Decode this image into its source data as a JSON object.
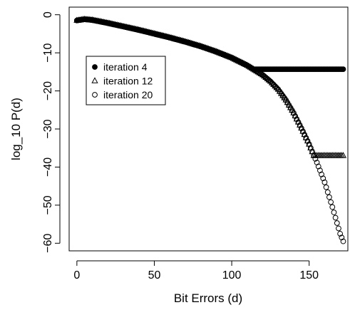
{
  "chart_data": {
    "type": "scatter",
    "title": "",
    "xlabel": "Bit Errors (d)",
    "ylabel": "log_10  P(d)",
    "xlim": [
      -5,
      175
    ],
    "ylim": [
      -62,
      2
    ],
    "x_ticks": [
      "0",
      "50",
      "100",
      "150"
    ],
    "y_ticks": [
      "0",
      "−10",
      "−20",
      "−30",
      "−40",
      "−50",
      "−60"
    ],
    "grid": false,
    "legend_position": "upper-left",
    "series": [
      {
        "name": "iteration 4",
        "marker": "filled-circle",
        "color": "#000000",
        "x_range": [
          0,
          172
        ],
        "points": [
          [
            0,
            -1.5
          ],
          [
            5,
            -1.2
          ],
          [
            10,
            -1.4
          ],
          [
            20,
            -2.2
          ],
          [
            30,
            -3.1
          ],
          [
            40,
            -4.0
          ],
          [
            50,
            -5.0
          ],
          [
            60,
            -6.0
          ],
          [
            70,
            -7.1
          ],
          [
            80,
            -8.3
          ],
          [
            90,
            -9.7
          ],
          [
            100,
            -11.3
          ],
          [
            110,
            -13.3
          ],
          [
            114,
            -14.3
          ],
          [
            120,
            -14.3
          ],
          [
            140,
            -14.3
          ],
          [
            160,
            -14.3
          ],
          [
            172,
            -14.3
          ]
        ]
      },
      {
        "name": "iteration 12",
        "marker": "open-triangle",
        "color": "#000000",
        "x_range": [
          0,
          172
        ],
        "points": [
          [
            0,
            -1.5
          ],
          [
            5,
            -1.2
          ],
          [
            10,
            -1.4
          ],
          [
            20,
            -2.2
          ],
          [
            30,
            -3.1
          ],
          [
            40,
            -4.0
          ],
          [
            50,
            -5.0
          ],
          [
            60,
            -6.0
          ],
          [
            70,
            -7.1
          ],
          [
            80,
            -8.3
          ],
          [
            90,
            -9.7
          ],
          [
            100,
            -11.3
          ],
          [
            110,
            -13.3
          ],
          [
            120,
            -15.8
          ],
          [
            125,
            -17.5
          ],
          [
            130,
            -19.6
          ],
          [
            135,
            -22.4
          ],
          [
            140,
            -25.8
          ],
          [
            145,
            -29.8
          ],
          [
            150,
            -34.0
          ],
          [
            153,
            -37.0
          ],
          [
            160,
            -37.0
          ],
          [
            172,
            -37.0
          ]
        ]
      },
      {
        "name": "iteration 20",
        "marker": "open-circle",
        "color": "#000000",
        "x_range": [
          0,
          172
        ],
        "points": [
          [
            0,
            -1.5
          ],
          [
            5,
            -1.2
          ],
          [
            10,
            -1.4
          ],
          [
            20,
            -2.2
          ],
          [
            30,
            -3.1
          ],
          [
            40,
            -4.0
          ],
          [
            50,
            -5.0
          ],
          [
            60,
            -6.0
          ],
          [
            70,
            -7.1
          ],
          [
            80,
            -8.3
          ],
          [
            90,
            -9.7
          ],
          [
            100,
            -11.3
          ],
          [
            110,
            -13.3
          ],
          [
            120,
            -15.8
          ],
          [
            125,
            -17.5
          ],
          [
            130,
            -19.6
          ],
          [
            135,
            -22.4
          ],
          [
            140,
            -25.8
          ],
          [
            145,
            -29.8
          ],
          [
            150,
            -34.0
          ],
          [
            155,
            -38.8
          ],
          [
            160,
            -44.0
          ],
          [
            165,
            -50.5
          ],
          [
            170,
            -57.5
          ],
          [
            172,
            -59.5
          ]
        ]
      }
    ]
  }
}
